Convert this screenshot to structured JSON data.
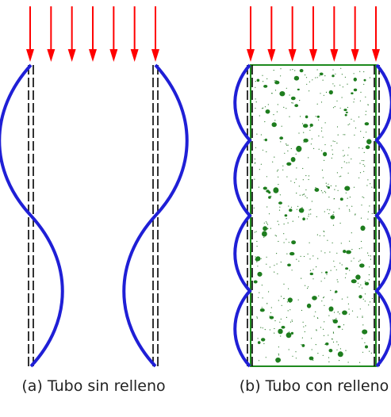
{
  "captions": {
    "a": "(a) Tubo sin relleno",
    "b": "(b) Tubo con relleno"
  },
  "colors": {
    "load_arrow": "#ff0000",
    "buckled_wall": "#1f1fd6",
    "tube_outline": "#000000",
    "fill_border": "#1e8a1e",
    "aggregate": "#1e7d1e",
    "sand_speckle": "#2a7a2a"
  },
  "diagram": {
    "panel_a": {
      "arrow_count": 7,
      "buckle_mode": "single outward half-wave per wall, walls separate from each other"
    },
    "panel_b": {
      "arrow_count": 7,
      "buckle_mode": "multiple small outward half-waves per wall, concrete core restrains inward buckling"
    }
  }
}
